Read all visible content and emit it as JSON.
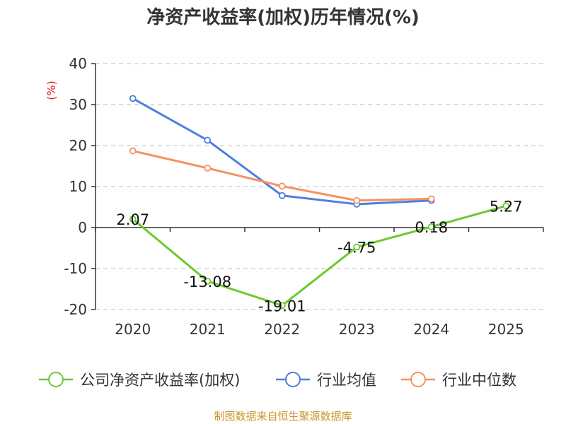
{
  "chart_data": {
    "type": "line",
    "title": "净资产收益率(加权)历年情况(%)",
    "ylabel": "(%)",
    "ylabel_color": "#e02020",
    "ylim": [
      -20,
      40
    ],
    "yticks": [
      40,
      30,
      20,
      10,
      0,
      -10,
      -20
    ],
    "categories": [
      "2020",
      "2021",
      "2022",
      "2023",
      "2024",
      "2025"
    ],
    "series": [
      {
        "name": "公司净资产收益率(加权)",
        "color": "#6dc832",
        "values": [
          2.07,
          -13.08,
          -19.01,
          -4.75,
          0.18,
          5.27
        ],
        "labels": [
          "2.07",
          "-13.08",
          "-19.01",
          "-4.75",
          "0.18",
          "5.27"
        ]
      },
      {
        "name": "行业均值",
        "color": "#4e7fdc",
        "values": [
          31.5,
          21.3,
          7.8,
          5.7,
          6.6,
          null
        ]
      },
      {
        "name": "行业中位数",
        "color": "#f59162",
        "values": [
          18.7,
          14.5,
          10.1,
          6.6,
          7.0,
          null
        ]
      }
    ],
    "grid": true,
    "legend": "bottom"
  },
  "source": "制图数据来自恒生聚源数据库"
}
